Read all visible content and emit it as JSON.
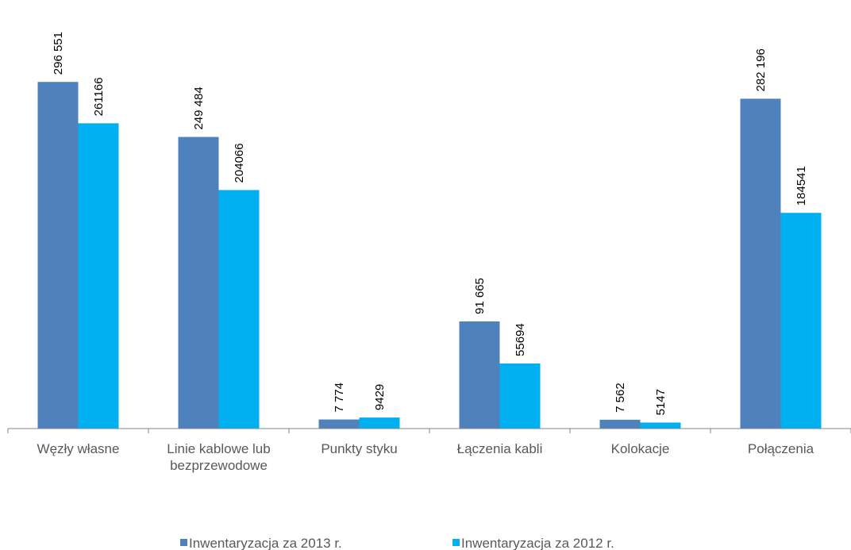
{
  "chart_data": {
    "type": "bar",
    "categories": [
      [
        "Węzły własne"
      ],
      [
        "Linie kablowe lub",
        "bezprzewodowe"
      ],
      [
        "Punkty styku"
      ],
      [
        "Łączenia kabli"
      ],
      [
        "Kolokacje"
      ],
      [
        "Połączenia"
      ]
    ],
    "series": [
      {
        "name": "Inwentaryzacja za 2013 r.",
        "color": "#4F81BD",
        "values": [
          296551,
          249484,
          7774,
          91665,
          7562,
          282196
        ],
        "labels": [
          "296 551",
          "249 484",
          "7 774",
          "91 665",
          "7 562",
          "282 196"
        ]
      },
      {
        "name": "Inwentaryzacja za 2012 r.",
        "color": "#00B0F0",
        "values": [
          261166,
          204066,
          9429,
          55694,
          5147,
          184541
        ],
        "labels": [
          "261166",
          "204066",
          "9429",
          "55694",
          "5147",
          "184541"
        ]
      }
    ],
    "ylim": [
      0,
      300000
    ],
    "grid": false,
    "legend_position": "bottom"
  }
}
